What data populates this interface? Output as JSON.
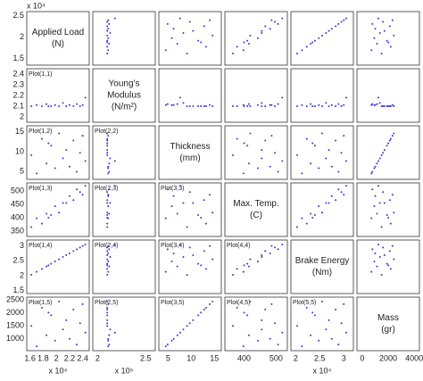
{
  "chart_data": {
    "type": "scatter_matrix",
    "color": "#3a3ad0",
    "y_multiplier": "x 10⁴",
    "panel_labels": [
      "Plot(1,1)",
      "Plot(1,2)",
      "Plot(2,2)",
      "Plot(1,3)",
      "Plot(2,3)",
      "Plot(3,3)",
      "Plot(1,4)",
      "Plot(2,4)",
      "Plot(3,4)",
      "Plot(4,4)",
      "Plot(1,5)",
      "Plot(2,5)",
      "Plot(3,5)",
      "Plot(4,5)",
      "Plot(5,5)"
    ],
    "variables": [
      {
        "name": [
          "Applied Load",
          "(N)"
        ],
        "x_multiplier": "x 10⁴",
        "xlim": [
          1.55,
          2.5
        ],
        "xticks": [
          1.6,
          1.8,
          2,
          2.2,
          2.4
        ],
        "ylim": [
          1.35,
          2.6
        ],
        "yticks": [
          1.5,
          2,
          2.5
        ],
        "values": [
          1.62,
          1.7,
          1.78,
          1.85,
          1.92,
          1.98,
          2.04,
          2.1,
          2.15,
          2.2,
          2.26,
          2.31,
          2.36,
          2.4,
          2.44,
          1.88
        ]
      },
      {
        "name": [
          "Young's",
          "Modulus",
          "(N/m²)"
        ],
        "x_multiplier": "x 10⁵",
        "xlim": [
          1.95,
          2.6
        ],
        "xticks": [
          2,
          2.5
        ],
        "ylim": [
          1.95,
          2.45
        ],
        "yticks": [
          2,
          2.1,
          2.2,
          2.3,
          2.4
        ],
        "values": [
          2.1,
          2.11,
          2.1,
          2.12,
          2.1,
          2.11,
          2.1,
          2.13,
          2.1,
          2.11,
          2.1,
          2.12,
          2.1,
          2.11,
          2.18,
          2.1
        ]
      },
      {
        "name": [
          "Thickness",
          "(mm)"
        ],
        "xlim": [
          3,
          16.5
        ],
        "xticks": [
          5,
          10,
          15
        ],
        "ylim": [
          3,
          16.5
        ],
        "yticks": [
          5,
          10,
          15
        ],
        "values": [
          9.1,
          4.5,
          13.2,
          7.0,
          11.5,
          5.8,
          14.6,
          8.3,
          10.4,
          6.2,
          12.8,
          4.9,
          9.7,
          14.0,
          7.6,
          12.1
        ]
      },
      {
        "name": [
          "Max. Temp.",
          "(C)"
        ],
        "xlim": [
          340,
          535
        ],
        "xticks": [
          400,
          500
        ],
        "ylim": [
          330,
          530
        ],
        "yticks": [
          350,
          400,
          450,
          500
        ],
        "values": [
          365,
          398,
          378,
          415,
          410,
          443,
          419,
          455,
          455,
          481,
          466,
          506,
          496,
          486,
          519,
          400
        ]
      },
      {
        "name": [
          "Brake Energy",
          "(Nm)"
        ],
        "x_multiplier": "x 10⁴",
        "xlim": [
          1.9,
          3.2
        ],
        "xticks": [
          2,
          2.5,
          3
        ],
        "ylim": [
          1.4,
          3.2
        ],
        "yticks": [
          1.5,
          2,
          2.5,
          3
        ],
        "values": [
          2.03,
          2.13,
          2.23,
          2.31,
          2.4,
          2.48,
          2.55,
          2.63,
          2.69,
          2.75,
          2.83,
          2.89,
          2.95,
          3.0,
          3.05,
          2.35
        ]
      },
      {
        "name": [
          "Mass",
          "(gr)"
        ],
        "xlim": [
          -400,
          4400
        ],
        "xticks": [
          0,
          2000,
          4000
        ],
        "ylim": [
          550,
          2600
        ],
        "yticks": [
          1000,
          1500,
          2000,
          2500
        ],
        "values": [
          1497,
          715,
          2194,
          1140,
          1905,
          936,
          2432,
          1361,
          1718,
          1004,
          2126,
          783,
          1599,
          2330,
          1242,
          2007
        ]
      }
    ]
  }
}
